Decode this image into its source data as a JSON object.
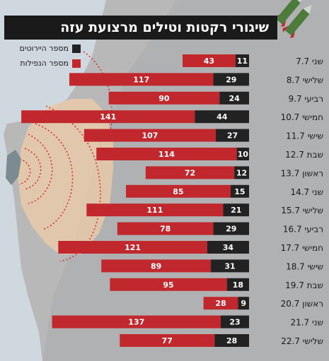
{
  "title": "שיגורי רקטות וטילים מרצועת עזה",
  "legend": {
    "intercepted_label": "מספר היירוטים",
    "fallen_label": "מספר הנפילות"
  },
  "colors": {
    "fallen": "#c0282d",
    "intercepted": "#222222",
    "title_bg": "#1a1a1a",
    "sea": "#cfd8de",
    "land": "#b8b8b8",
    "range_zone": "#e8c9a8"
  },
  "chart_data": {
    "type": "bar",
    "orientation": "horizontal-stacked",
    "title": "שיגורי רקטות וטילים מרצועת עזה",
    "categories": [
      "שני 7.7",
      "שלישי 8.7",
      "רביעי 9.7",
      "חמישי 10.7",
      "שישי 11.7",
      "שבת 12.7",
      "ראשון 13.7",
      "שני 14.7",
      "שלישי 15.7",
      "רביעי 16.7",
      "חמישי 17.7",
      "שישי 18.7",
      "שבת 19.7",
      "ראשון 20.7",
      "שני 21.7",
      "שלישי 22.7"
    ],
    "series": [
      {
        "name": "מספר היירוטים",
        "values": [
          11,
          29,
          24,
          44,
          27,
          10,
          12,
          15,
          21,
          29,
          34,
          31,
          18,
          9,
          23,
          28
        ]
      },
      {
        "name": "מספר הנפילות",
        "values": [
          43,
          117,
          90,
          141,
          107,
          114,
          72,
          85,
          111,
          78,
          121,
          89,
          95,
          28,
          137,
          77
        ]
      }
    ]
  }
}
